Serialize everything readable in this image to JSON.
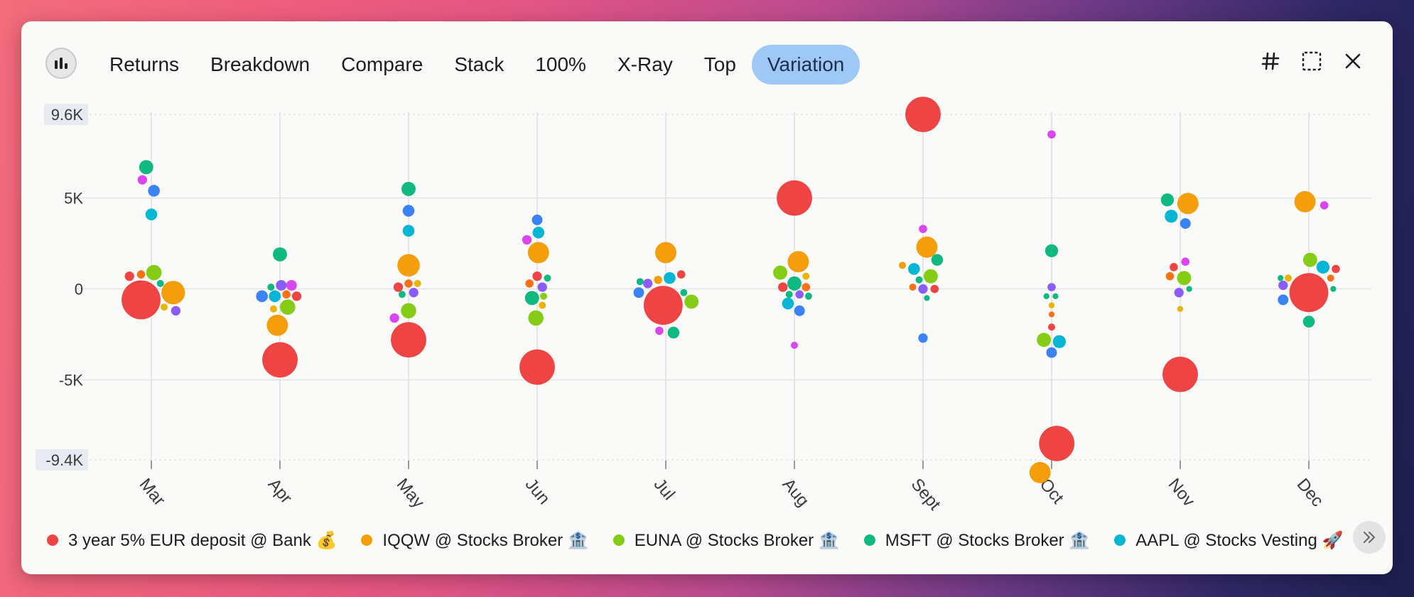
{
  "toolbar": {
    "tabs": [
      "Returns",
      "Breakdown",
      "Compare",
      "Stack",
      "100%",
      "X-Ray",
      "Top",
      "Variation"
    ],
    "active_tab": "Variation",
    "chart_icon": "bar-chart-icon",
    "right_icons": [
      "hash-icon",
      "select-area-icon",
      "close-icon"
    ],
    "accent_color": "#9ec9f7"
  },
  "chart_data": {
    "type": "scatter",
    "title": "Variation",
    "categories": [
      "Mar",
      "Apr",
      "May",
      "Jun",
      "Jul",
      "Aug",
      "Sept",
      "Oct",
      "Nov",
      "Dec"
    ],
    "y_ticks": [
      {
        "value": 9600,
        "label": "9.6K",
        "boxed": true
      },
      {
        "value": 5000,
        "label": "5K",
        "boxed": false
      },
      {
        "value": 0,
        "label": "0",
        "boxed": false
      },
      {
        "value": -5000,
        "label": "-5K",
        "boxed": false
      },
      {
        "value": -9400,
        "label": "-9.4K",
        "boxed": true
      }
    ],
    "ylim": [
      -9400,
      9600
    ],
    "points": [
      {
        "m": 0,
        "dx": -0.04,
        "y": 6700,
        "c": "#10b981",
        "s": 1.2
      },
      {
        "m": 0,
        "dx": -0.07,
        "y": 6000,
        "c": "#d946ef",
        "s": 0.8
      },
      {
        "m": 0,
        "dx": 0.02,
        "y": 5400,
        "c": "#3b82f6",
        "s": 1.0
      },
      {
        "m": 0,
        "dx": 0.0,
        "y": 4100,
        "c": "#06b6d4",
        "s": 1.0
      },
      {
        "m": 0,
        "dx": -0.17,
        "y": 700,
        "c": "#ef4444",
        "s": 0.8
      },
      {
        "m": 0,
        "dx": -0.08,
        "y": 800,
        "c": "#f97316",
        "s": 0.7
      },
      {
        "m": 0,
        "dx": 0.02,
        "y": 900,
        "c": "#84cc16",
        "s": 1.3
      },
      {
        "m": 0,
        "dx": 0.07,
        "y": 300,
        "c": "#10b981",
        "s": 0.6
      },
      {
        "m": 0,
        "dx": 0.17,
        "y": -200,
        "c": "#f59e0b",
        "s": 2.0
      },
      {
        "m": 0,
        "dx": 0.1,
        "y": -1000,
        "c": "#eab308",
        "s": 0.6
      },
      {
        "m": 0,
        "dx": 0.19,
        "y": -1200,
        "c": "#8b5cf6",
        "s": 0.8
      },
      {
        "m": 0,
        "dx": -0.08,
        "y": -600,
        "c": "#ef4444",
        "s": 3.3
      },
      {
        "m": 1,
        "dx": 0.0,
        "y": 1900,
        "c": "#10b981",
        "s": 1.2
      },
      {
        "m": 1,
        "dx": -0.07,
        "y": 100,
        "c": "#10b981",
        "s": 0.6
      },
      {
        "m": 1,
        "dx": 0.01,
        "y": 200,
        "c": "#8b5cf6",
        "s": 0.9
      },
      {
        "m": 1,
        "dx": 0.09,
        "y": 200,
        "c": "#d946ef",
        "s": 0.9
      },
      {
        "m": 1,
        "dx": -0.14,
        "y": -400,
        "c": "#3b82f6",
        "s": 1.0
      },
      {
        "m": 1,
        "dx": -0.04,
        "y": -400,
        "c": "#06b6d4",
        "s": 1.0
      },
      {
        "m": 1,
        "dx": 0.05,
        "y": -300,
        "c": "#f97316",
        "s": 0.7
      },
      {
        "m": 1,
        "dx": 0.13,
        "y": -400,
        "c": "#ef4444",
        "s": 0.8
      },
      {
        "m": 1,
        "dx": 0.06,
        "y": -1000,
        "c": "#84cc16",
        "s": 1.3
      },
      {
        "m": 1,
        "dx": -0.05,
        "y": -1100,
        "c": "#eab308",
        "s": 0.6
      },
      {
        "m": 1,
        "dx": -0.02,
        "y": -2000,
        "c": "#f59e0b",
        "s": 1.8
      },
      {
        "m": 1,
        "dx": 0.0,
        "y": -3900,
        "c": "#ef4444",
        "s": 3.0
      },
      {
        "m": 2,
        "dx": 0.0,
        "y": 5500,
        "c": "#10b981",
        "s": 1.2
      },
      {
        "m": 2,
        "dx": 0.0,
        "y": 4300,
        "c": "#3b82f6",
        "s": 1.0
      },
      {
        "m": 2,
        "dx": 0.0,
        "y": 3200,
        "c": "#06b6d4",
        "s": 1.0
      },
      {
        "m": 2,
        "dx": 0.0,
        "y": 1300,
        "c": "#f59e0b",
        "s": 1.9
      },
      {
        "m": 2,
        "dx": -0.08,
        "y": 100,
        "c": "#ef4444",
        "s": 0.8
      },
      {
        "m": 2,
        "dx": 0.0,
        "y": 300,
        "c": "#f97316",
        "s": 0.7
      },
      {
        "m": 2,
        "dx": 0.07,
        "y": 300,
        "c": "#eab308",
        "s": 0.6
      },
      {
        "m": 2,
        "dx": 0.04,
        "y": -200,
        "c": "#8b5cf6",
        "s": 0.8
      },
      {
        "m": 2,
        "dx": -0.05,
        "y": -300,
        "c": "#10b981",
        "s": 0.6
      },
      {
        "m": 2,
        "dx": 0.0,
        "y": -1200,
        "c": "#84cc16",
        "s": 1.3
      },
      {
        "m": 2,
        "dx": -0.11,
        "y": -1600,
        "c": "#d946ef",
        "s": 0.8
      },
      {
        "m": 2,
        "dx": 0.0,
        "y": -2800,
        "c": "#ef4444",
        "s": 3.0
      },
      {
        "m": 3,
        "dx": 0.0,
        "y": 3800,
        "c": "#3b82f6",
        "s": 0.9
      },
      {
        "m": 3,
        "dx": 0.01,
        "y": 3100,
        "c": "#06b6d4",
        "s": 1.0
      },
      {
        "m": 3,
        "dx": -0.08,
        "y": 2700,
        "c": "#d946ef",
        "s": 0.8
      },
      {
        "m": 3,
        "dx": 0.01,
        "y": 2000,
        "c": "#f59e0b",
        "s": 1.8
      },
      {
        "m": 3,
        "dx": 0.0,
        "y": 700,
        "c": "#ef4444",
        "s": 0.8
      },
      {
        "m": 3,
        "dx": 0.08,
        "y": 600,
        "c": "#10b981",
        "s": 0.6
      },
      {
        "m": 3,
        "dx": -0.06,
        "y": 300,
        "c": "#f97316",
        "s": 0.7
      },
      {
        "m": 3,
        "dx": 0.04,
        "y": 100,
        "c": "#8b5cf6",
        "s": 0.8
      },
      {
        "m": 3,
        "dx": -0.04,
        "y": -500,
        "c": "#10b981",
        "s": 1.2
      },
      {
        "m": 3,
        "dx": 0.05,
        "y": -400,
        "c": "#84cc16",
        "s": 0.6
      },
      {
        "m": 3,
        "dx": 0.04,
        "y": -900,
        "c": "#eab308",
        "s": 0.6
      },
      {
        "m": 3,
        "dx": -0.01,
        "y": -1600,
        "c": "#84cc16",
        "s": 1.3
      },
      {
        "m": 3,
        "dx": 0.0,
        "y": -4300,
        "c": "#ef4444",
        "s": 3.0
      },
      {
        "m": 4,
        "dx": 0.0,
        "y": 2000,
        "c": "#f59e0b",
        "s": 1.8
      },
      {
        "m": 4,
        "dx": -0.2,
        "y": 400,
        "c": "#10b981",
        "s": 0.6
      },
      {
        "m": 4,
        "dx": -0.14,
        "y": 300,
        "c": "#8b5cf6",
        "s": 0.8
      },
      {
        "m": 4,
        "dx": -0.06,
        "y": 500,
        "c": "#f59e0b",
        "s": 0.7
      },
      {
        "m": 4,
        "dx": 0.03,
        "y": 600,
        "c": "#06b6d4",
        "s": 1.0
      },
      {
        "m": 4,
        "dx": 0.12,
        "y": 800,
        "c": "#ef4444",
        "s": 0.7
      },
      {
        "m": 4,
        "dx": -0.21,
        "y": -200,
        "c": "#3b82f6",
        "s": 0.9
      },
      {
        "m": 4,
        "dx": 0.14,
        "y": -200,
        "c": "#10b981",
        "s": 0.6
      },
      {
        "m": 4,
        "dx": 0.2,
        "y": -700,
        "c": "#84cc16",
        "s": 1.2
      },
      {
        "m": 4,
        "dx": -0.05,
        "y": -2300,
        "c": "#d946ef",
        "s": 0.7
      },
      {
        "m": 4,
        "dx": 0.06,
        "y": -2400,
        "c": "#10b981",
        "s": 1.0
      },
      {
        "m": 4,
        "dx": -0.02,
        "y": -900,
        "c": "#ef4444",
        "s": 3.3
      },
      {
        "m": 5,
        "dx": 0.0,
        "y": 5000,
        "c": "#ef4444",
        "s": 3.0
      },
      {
        "m": 5,
        "dx": 0.03,
        "y": 1500,
        "c": "#f59e0b",
        "s": 1.8
      },
      {
        "m": 5,
        "dx": -0.11,
        "y": 900,
        "c": "#84cc16",
        "s": 1.2
      },
      {
        "m": 5,
        "dx": 0.09,
        "y": 700,
        "c": "#eab308",
        "s": 0.6
      },
      {
        "m": 5,
        "dx": -0.09,
        "y": 100,
        "c": "#ef4444",
        "s": 0.8
      },
      {
        "m": 5,
        "dx": 0.0,
        "y": 300,
        "c": "#10b981",
        "s": 1.2
      },
      {
        "m": 5,
        "dx": 0.09,
        "y": 100,
        "c": "#f97316",
        "s": 0.7
      },
      {
        "m": 5,
        "dx": -0.04,
        "y": -300,
        "c": "#10b981",
        "s": 0.6
      },
      {
        "m": 5,
        "dx": 0.04,
        "y": -300,
        "c": "#8b5cf6",
        "s": 0.7
      },
      {
        "m": 5,
        "dx": 0.11,
        "y": -400,
        "c": "#10b981",
        "s": 0.6
      },
      {
        "m": 5,
        "dx": -0.05,
        "y": -800,
        "c": "#06b6d4",
        "s": 1.0
      },
      {
        "m": 5,
        "dx": 0.04,
        "y": -1200,
        "c": "#3b82f6",
        "s": 0.9
      },
      {
        "m": 5,
        "dx": 0.0,
        "y": -3100,
        "c": "#d946ef",
        "s": 0.6
      },
      {
        "m": 6,
        "dx": 0.0,
        "y": 9600,
        "c": "#ef4444",
        "s": 3.0
      },
      {
        "m": 6,
        "dx": 0.0,
        "y": 3300,
        "c": "#d946ef",
        "s": 0.7
      },
      {
        "m": 6,
        "dx": 0.03,
        "y": 2300,
        "c": "#f59e0b",
        "s": 1.8
      },
      {
        "m": 6,
        "dx": -0.16,
        "y": 1300,
        "c": "#f59e0b",
        "s": 0.6
      },
      {
        "m": 6,
        "dx": -0.07,
        "y": 1100,
        "c": "#06b6d4",
        "s": 1.0
      },
      {
        "m": 6,
        "dx": 0.11,
        "y": 1600,
        "c": "#10b981",
        "s": 1.0
      },
      {
        "m": 6,
        "dx": 0.06,
        "y": 700,
        "c": "#84cc16",
        "s": 1.2
      },
      {
        "m": 6,
        "dx": -0.03,
        "y": 500,
        "c": "#10b981",
        "s": 0.6
      },
      {
        "m": 6,
        "dx": -0.08,
        "y": 100,
        "c": "#f97316",
        "s": 0.6
      },
      {
        "m": 6,
        "dx": 0.0,
        "y": 0,
        "c": "#8b5cf6",
        "s": 0.8
      },
      {
        "m": 6,
        "dx": 0.09,
        "y": 0,
        "c": "#ef4444",
        "s": 0.7
      },
      {
        "m": 6,
        "dx": 0.03,
        "y": -500,
        "c": "#10b981",
        "s": 0.5
      },
      {
        "m": 6,
        "dx": 0.0,
        "y": -2700,
        "c": "#3b82f6",
        "s": 0.8
      },
      {
        "m": 7,
        "dx": 0.0,
        "y": 8500,
        "c": "#d946ef",
        "s": 0.7
      },
      {
        "m": 7,
        "dx": 0.0,
        "y": 2100,
        "c": "#10b981",
        "s": 1.1
      },
      {
        "m": 7,
        "dx": 0.0,
        "y": 100,
        "c": "#8b5cf6",
        "s": 0.7
      },
      {
        "m": 7,
        "dx": -0.04,
        "y": -400,
        "c": "#10b981",
        "s": 0.5
      },
      {
        "m": 7,
        "dx": 0.03,
        "y": -400,
        "c": "#10b981",
        "s": 0.5
      },
      {
        "m": 7,
        "dx": 0.0,
        "y": -900,
        "c": "#eab308",
        "s": 0.5
      },
      {
        "m": 7,
        "dx": 0.0,
        "y": -1400,
        "c": "#f97316",
        "s": 0.5
      },
      {
        "m": 7,
        "dx": 0.0,
        "y": -2100,
        "c": "#ef4444",
        "s": 0.6
      },
      {
        "m": 7,
        "dx": -0.06,
        "y": -2800,
        "c": "#84cc16",
        "s": 1.2
      },
      {
        "m": 7,
        "dx": 0.06,
        "y": -2900,
        "c": "#06b6d4",
        "s": 1.1
      },
      {
        "m": 7,
        "dx": 0.0,
        "y": -3500,
        "c": "#3b82f6",
        "s": 0.9
      },
      {
        "m": 7,
        "dx": 0.04,
        "y": -8500,
        "c": "#ef4444",
        "s": 3.0
      },
      {
        "m": 7,
        "dx": -0.09,
        "y": -10100,
        "c": "#f59e0b",
        "s": 1.8
      },
      {
        "m": 8,
        "dx": -0.1,
        "y": 4900,
        "c": "#10b981",
        "s": 1.1
      },
      {
        "m": 8,
        "dx": 0.06,
        "y": 4700,
        "c": "#f59e0b",
        "s": 1.8
      },
      {
        "m": 8,
        "dx": -0.07,
        "y": 4000,
        "c": "#06b6d4",
        "s": 1.1
      },
      {
        "m": 8,
        "dx": 0.04,
        "y": 3600,
        "c": "#3b82f6",
        "s": 0.9
      },
      {
        "m": 8,
        "dx": 0.04,
        "y": 1500,
        "c": "#d946ef",
        "s": 0.7
      },
      {
        "m": 8,
        "dx": -0.05,
        "y": 1200,
        "c": "#ef4444",
        "s": 0.7
      },
      {
        "m": 8,
        "dx": -0.08,
        "y": 700,
        "c": "#f97316",
        "s": 0.7
      },
      {
        "m": 8,
        "dx": 0.03,
        "y": 600,
        "c": "#84cc16",
        "s": 1.2
      },
      {
        "m": 8,
        "dx": 0.07,
        "y": 0,
        "c": "#10b981",
        "s": 0.5
      },
      {
        "m": 8,
        "dx": -0.01,
        "y": -200,
        "c": "#8b5cf6",
        "s": 0.8
      },
      {
        "m": 8,
        "dx": 0.0,
        "y": -1100,
        "c": "#eab308",
        "s": 0.5
      },
      {
        "m": 8,
        "dx": 0.0,
        "y": -4700,
        "c": "#ef4444",
        "s": 3.0
      },
      {
        "m": 9,
        "dx": -0.03,
        "y": 4800,
        "c": "#f59e0b",
        "s": 1.8
      },
      {
        "m": 9,
        "dx": 0.12,
        "y": 4600,
        "c": "#d946ef",
        "s": 0.7
      },
      {
        "m": 9,
        "dx": 0.01,
        "y": 1600,
        "c": "#84cc16",
        "s": 1.2
      },
      {
        "m": 9,
        "dx": 0.11,
        "y": 1200,
        "c": "#06b6d4",
        "s": 1.1
      },
      {
        "m": 9,
        "dx": 0.21,
        "y": 1100,
        "c": "#ef4444",
        "s": 0.7
      },
      {
        "m": 9,
        "dx": -0.22,
        "y": 600,
        "c": "#10b981",
        "s": 0.5
      },
      {
        "m": 9,
        "dx": -0.16,
        "y": 600,
        "c": "#eab308",
        "s": 0.6
      },
      {
        "m": 9,
        "dx": 0.17,
        "y": 600,
        "c": "#f97316",
        "s": 0.6
      },
      {
        "m": 9,
        "dx": -0.2,
        "y": 200,
        "c": "#8b5cf6",
        "s": 0.8
      },
      {
        "m": 9,
        "dx": 0.19,
        "y": 0,
        "c": "#10b981",
        "s": 0.5
      },
      {
        "m": 9,
        "dx": -0.2,
        "y": -600,
        "c": "#3b82f6",
        "s": 0.9
      },
      {
        "m": 9,
        "dx": 0.0,
        "y": -1800,
        "c": "#10b981",
        "s": 1.0
      },
      {
        "m": 9,
        "dx": 0.0,
        "y": -200,
        "c": "#ef4444",
        "s": 3.3
      }
    ],
    "legend": [
      {
        "label": "3 year 5% EUR deposit @ Bank 💰",
        "color": "#ef4444"
      },
      {
        "label": "IQQW @ Stocks Broker 🏦",
        "color": "#f59e0b"
      },
      {
        "label": "EUNA @ Stocks Broker 🏦",
        "color": "#84cc16"
      },
      {
        "label": "MSFT @ Stocks Broker 🏦",
        "color": "#10b981"
      },
      {
        "label": "AAPL @ Stocks Vesting 🚀",
        "color": "#06b6d4"
      }
    ]
  },
  "legend_scroll_icon": "chevron-double-right-icon"
}
